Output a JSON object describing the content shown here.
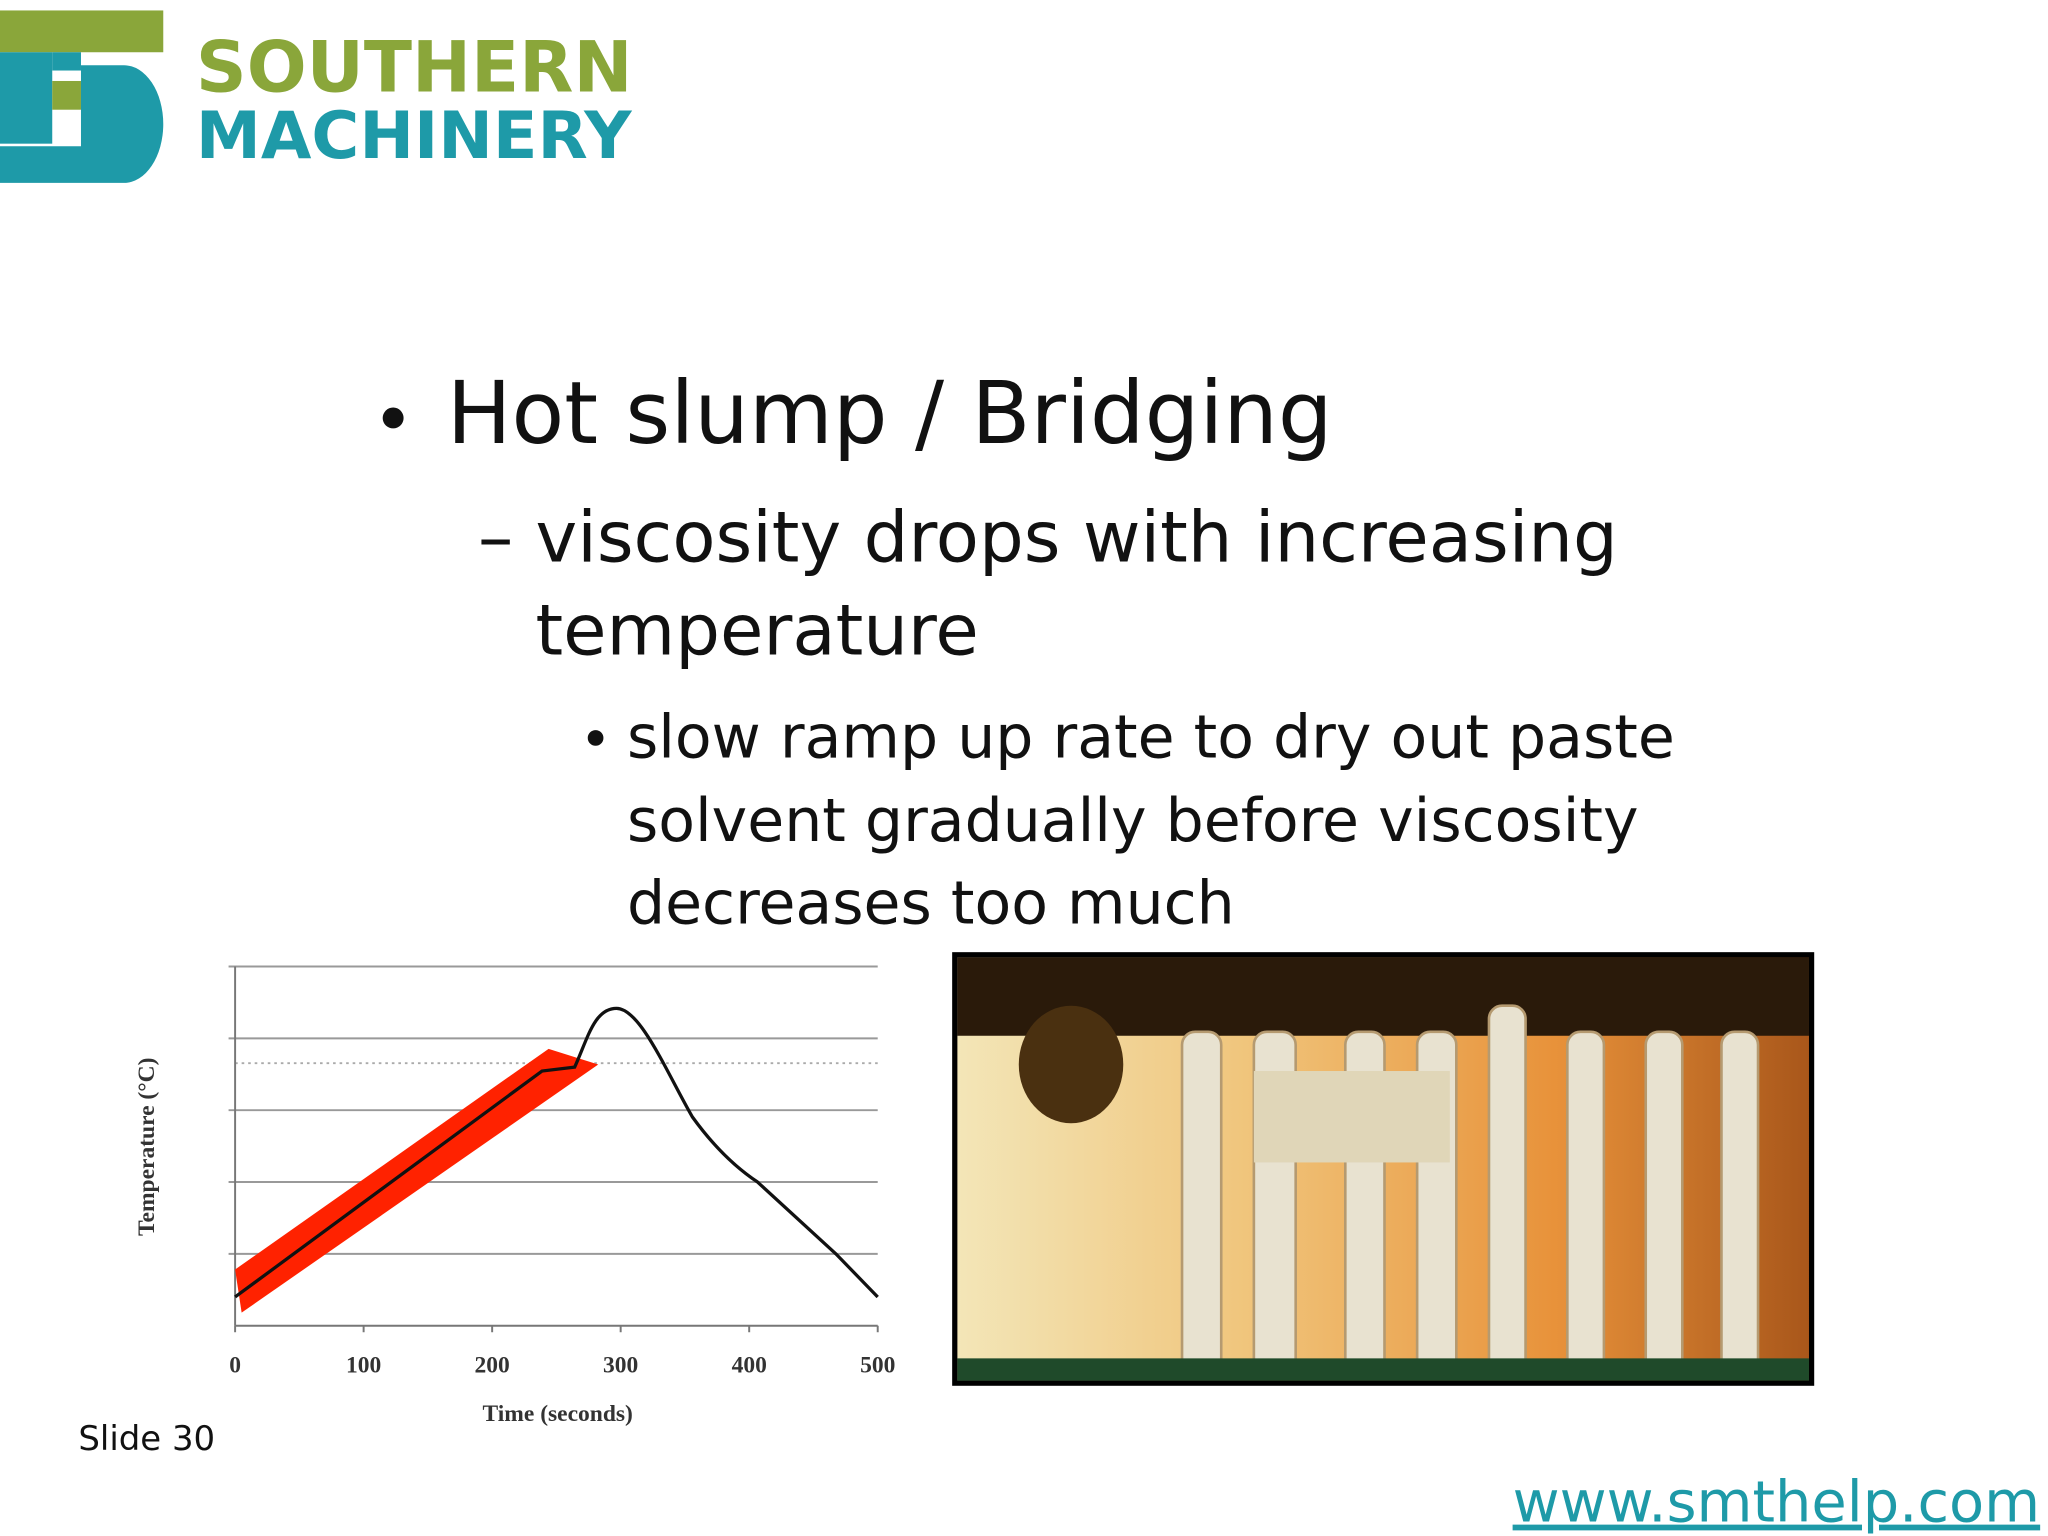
{
  "logo": {
    "line1": "SOUTHERN",
    "line2": "MACHINERY"
  },
  "bullets": [
    {
      "lines": [
        "Hot slump / Bridging"
      ],
      "sub": [
        {
          "lines": [
            "viscosity drops with increasing",
            "temperature"
          ],
          "sub": [
            {
              "lines": [
                "slow ramp up rate to dry out paste",
                "solvent gradually before viscosity",
                "decreases too much"
              ]
            }
          ]
        }
      ]
    }
  ],
  "chart": {
    "x_label": "Time (seconds)",
    "y_label": "Temperature (°C)",
    "xlim": [
      0,
      500
    ],
    "xticks": [
      0,
      100,
      200,
      300,
      400,
      500
    ]
  },
  "footer": {
    "slide_number": "Slide 30",
    "url": "www.smthelp.com"
  }
}
